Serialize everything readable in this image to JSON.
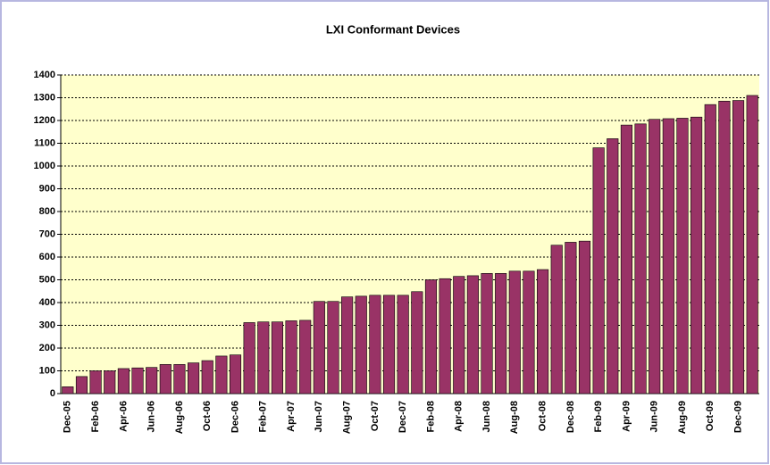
{
  "chart_data": {
    "type": "bar",
    "title": "LXI Conformant Devices",
    "categories": [
      "Dec-05",
      null,
      "Feb-06",
      null,
      "Apr-06",
      null,
      "Jun-06",
      null,
      "Aug-06",
      null,
      "Oct-06",
      null,
      "Dec-06",
      null,
      "Feb-07",
      null,
      "Apr-07",
      null,
      "Jun-07",
      null,
      "Aug-07",
      null,
      "Oct-07",
      null,
      "Dec-07",
      null,
      "Feb-08",
      null,
      "Apr-08",
      null,
      "Jun-08",
      null,
      "Aug-08",
      null,
      "Oct-08",
      null,
      "Dec-08",
      null,
      "Feb-09",
      null,
      "Apr-09",
      null,
      "Jun-09",
      null,
      "Aug-09",
      null,
      "Oct-09",
      null,
      "Dec-09",
      null
    ],
    "values": [
      30,
      75,
      100,
      100,
      110,
      113,
      115,
      128,
      128,
      135,
      145,
      165,
      170,
      312,
      315,
      315,
      320,
      322,
      405,
      405,
      425,
      428,
      432,
      432,
      432,
      448,
      500,
      505,
      515,
      518,
      528,
      528,
      538,
      538,
      545,
      652,
      665,
      670,
      1080,
      1120,
      1180,
      1185,
      1205,
      1208,
      1210,
      1215,
      1270,
      1285,
      1288,
      1310
    ],
    "color": "#993366",
    "ylim": [
      0,
      1400
    ],
    "yticks": [
      0,
      100,
      200,
      300,
      400,
      500,
      600,
      700,
      800,
      900,
      1000,
      1100,
      1200,
      1300,
      1400
    ],
    "grid": true
  }
}
